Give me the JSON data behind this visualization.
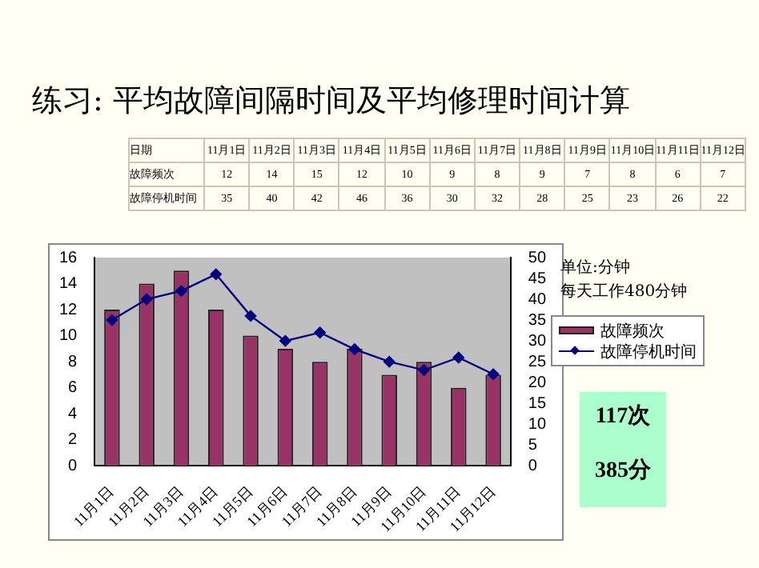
{
  "chart_data": [
    {
      "type": "other",
      "title": "练习: 平均故障间隔时间及平均修理时间计算",
      "xlabel": "日期",
      "data_labels": true,
      "categories": [
        "11月1日",
        "11月2日",
        "11月3日",
        "11月4日",
        "11月5日",
        "11月6日",
        "11月7日",
        "11月8日",
        "11月9日",
        "11月10日",
        "11月11日",
        "11月12日"
      ],
      "series": [
        {
          "name": "故障频次",
          "values": [
            12,
            14,
            15,
            12,
            10,
            9,
            8,
            9,
            7,
            8,
            6,
            7
          ]
        },
        {
          "name": "故障停机时间",
          "values": [
            35,
            40,
            42,
            46,
            36,
            30,
            32,
            28,
            25,
            23,
            26,
            22
          ]
        }
      ]
    },
    {
      "type": "bar",
      "categories": [
        "11月1日",
        "11月2日",
        "11月3日",
        "11月4日",
        "11月5日",
        "11月6日",
        "11月7日",
        "11月8日",
        "11月9日",
        "11月10日",
        "11月11日",
        "11月12日"
      ],
      "series": [
        {
          "name": "故障频次",
          "color": "#993366",
          "values": [
            12,
            14,
            15,
            12,
            10,
            9,
            8,
            9,
            7,
            8,
            6,
            7
          ]
        },
        {
          "name": "故障停机时间",
          "type": "line",
          "axis": "y2",
          "color": "#000080",
          "marker": "diamond",
          "values": [
            35,
            40,
            42,
            46,
            36,
            30,
            32,
            28,
            25,
            23,
            26,
            22
          ]
        }
      ],
      "ylim": [
        0,
        16
      ],
      "yticks": [
        0,
        2,
        4,
        6,
        8,
        10,
        12,
        14,
        16
      ],
      "y2lim": [
        0,
        50
      ],
      "y2ticks": [
        0,
        5,
        10,
        15,
        20,
        25,
        30,
        35,
        40,
        45,
        50
      ],
      "grid": false,
      "legend": "right",
      "annotations": [
        "单位:分钟",
        "每天工作480分钟",
        "117次",
        "385分"
      ]
    }
  ]
}
